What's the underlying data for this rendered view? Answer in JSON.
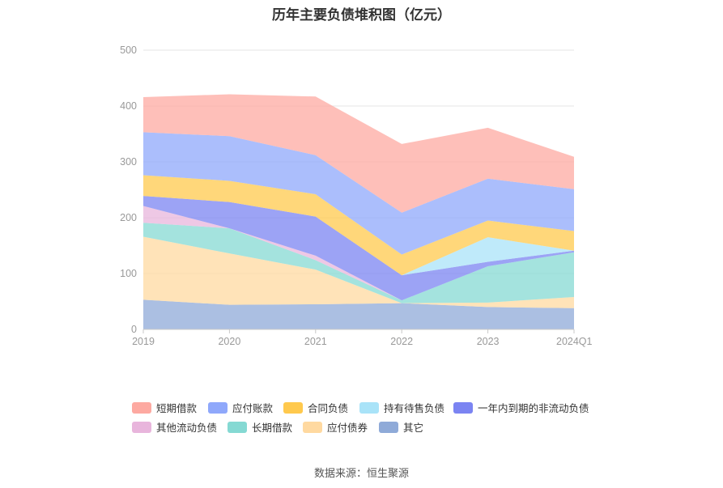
{
  "chart_data": {
    "type": "area",
    "stacked": true,
    "title": "历年主要负债堆积图（亿元）",
    "categories": [
      "2019",
      "2020",
      "2021",
      "2022",
      "2023",
      "2024Q1"
    ],
    "ylim": [
      0,
      500
    ],
    "yticks": [
      0,
      100,
      200,
      300,
      400,
      500
    ],
    "grid": true,
    "legend_position": "bottom",
    "series": [
      {
        "name": "其它",
        "color": "#8faad8",
        "values": [
          53,
          44,
          45,
          47,
          40,
          38
        ]
      },
      {
        "name": "应付债券",
        "color": "#ffd9a0",
        "values": [
          113,
          92,
          62,
          0,
          8,
          20
        ]
      },
      {
        "name": "长期借款",
        "color": "#85d9d3",
        "values": [
          25,
          45,
          17,
          5,
          65,
          80
        ]
      },
      {
        "name": "其他流动负债",
        "color": "#e8b5dc",
        "values": [
          30,
          0,
          8,
          0,
          0,
          0
        ]
      },
      {
        "name": "一年内到期的非流动负债",
        "color": "#7b84f2",
        "values": [
          18,
          47,
          70,
          45,
          8,
          3
        ]
      },
      {
        "name": "持有待售负债",
        "color": "#a9e3f8",
        "values": [
          0,
          0,
          0,
          0,
          44,
          0
        ]
      },
      {
        "name": "合同负债",
        "color": "#ffc94d",
        "values": [
          37,
          38,
          40,
          37,
          30,
          35
        ]
      },
      {
        "name": "应付账款",
        "color": "#8fa8fb",
        "values": [
          77,
          80,
          70,
          75,
          75,
          75
        ]
      },
      {
        "name": "短期借款",
        "color": "#fda9a1",
        "values": [
          63,
          75,
          105,
          123,
          91,
          58
        ]
      }
    ]
  },
  "legend": {
    "items": [
      {
        "label": "短期借款",
        "color": "#fda9a1"
      },
      {
        "label": "应付账款",
        "color": "#8fa8fb"
      },
      {
        "label": "合同负债",
        "color": "#ffc94d"
      },
      {
        "label": "持有待售负债",
        "color": "#a9e3f8"
      },
      {
        "label": "一年内到期的非流动负债",
        "color": "#7b84f2"
      },
      {
        "label": "其他流动负债",
        "color": "#e8b5dc"
      },
      {
        "label": "长期借款",
        "color": "#85d9d3"
      },
      {
        "label": "应付债券",
        "color": "#ffd9a0"
      },
      {
        "label": "其它",
        "color": "#8faad8"
      }
    ]
  },
  "source": "数据来源：恒生聚源"
}
